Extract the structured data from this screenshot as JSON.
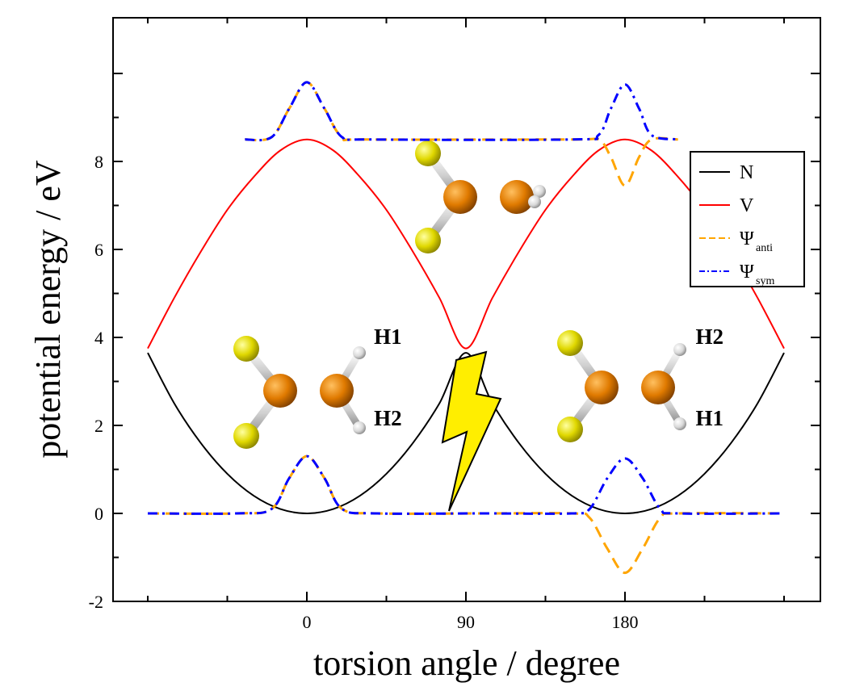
{
  "chart_data": {
    "type": "line",
    "xlabel": "torsion angle / degree",
    "ylabel": "potential energy / eV",
    "xlim": [
      -90,
      270
    ],
    "ylim": [
      -2,
      10
    ],
    "xticks": [
      0,
      90,
      180
    ],
    "yticks": [
      -2,
      0,
      2,
      4,
      6,
      8
    ],
    "legend_position": "right",
    "series": [
      {
        "name": "N",
        "color": "#000000",
        "style": "solid",
        "x": [
          -90,
          -75,
          -60,
          -45,
          -30,
          -15,
          0,
          15,
          30,
          45,
          60,
          75,
          90,
          105,
          120,
          135,
          150,
          165,
          180,
          195,
          210,
          225,
          240,
          255,
          270
        ],
        "y": [
          3.65,
          2.5,
          1.6,
          0.9,
          0.4,
          0.1,
          0.0,
          0.1,
          0.4,
          0.9,
          1.6,
          2.5,
          3.65,
          2.5,
          1.6,
          0.9,
          0.4,
          0.1,
          0.0,
          0.1,
          0.4,
          0.9,
          1.6,
          2.5,
          3.65
        ]
      },
      {
        "name": "V",
        "color": "#ff0000",
        "style": "solid",
        "x": [
          -90,
          -75,
          -60,
          -45,
          -30,
          -15,
          0,
          15,
          30,
          45,
          60,
          75,
          90,
          105,
          120,
          135,
          150,
          165,
          180,
          195,
          210,
          225,
          240,
          255,
          270
        ],
        "y": [
          3.75,
          4.9,
          5.95,
          6.9,
          7.65,
          8.25,
          8.5,
          8.25,
          7.65,
          6.9,
          5.95,
          4.9,
          3.75,
          4.9,
          5.95,
          6.9,
          7.65,
          8.25,
          8.5,
          8.25,
          7.65,
          6.9,
          5.95,
          4.9,
          3.75
        ]
      },
      {
        "name": "Ψanti",
        "color": "#ffa500",
        "style": "dash",
        "segments": [
          {
            "baseline": 0,
            "x": [
              -90,
              -40,
              -20,
              -10,
              0,
              10,
              20,
              40,
              100,
              150,
              160,
              170,
              180,
              190,
              200,
              210,
              270
            ],
            "y": [
              0,
              0,
              0.1,
              0.8,
              1.3,
              0.8,
              0.1,
              0,
              0,
              0,
              -0.1,
              -0.8,
              -1.35,
              -0.8,
              -0.1,
              0,
              0
            ]
          },
          {
            "baseline": 8.5,
            "x": [
              -35,
              -20,
              -10,
              0,
              10,
              20,
              35,
              150,
              165,
              172,
              180,
              188,
              195,
              210
            ],
            "y": [
              8.5,
              8.55,
              9.2,
              9.8,
              9.2,
              8.55,
              8.5,
              8.5,
              8.5,
              8.1,
              7.45,
              8.1,
              8.5,
              8.5
            ]
          }
        ]
      },
      {
        "name": "Ψsym",
        "color": "#0000ff",
        "style": "dashdot",
        "segments": [
          {
            "baseline": 0,
            "x": [
              -90,
              -40,
              -20,
              -10,
              0,
              10,
              20,
              40,
              100,
              150,
              160,
              170,
              180,
              190,
              200,
              210,
              270
            ],
            "y": [
              0,
              0,
              0.1,
              0.8,
              1.3,
              0.8,
              0.1,
              0,
              0,
              0,
              0.1,
              0.8,
              1.25,
              0.8,
              0.1,
              0,
              0
            ]
          },
          {
            "baseline": 8.5,
            "x": [
              -35,
              -20,
              -10,
              0,
              10,
              20,
              35,
              150,
              165,
              172,
              180,
              188,
              195,
              210
            ],
            "y": [
              8.5,
              8.55,
              9.2,
              9.8,
              9.2,
              8.55,
              8.5,
              8.5,
              8.6,
              9.2,
              9.75,
              9.2,
              8.6,
              8.5
            ]
          }
        ]
      }
    ],
    "legend": [
      {
        "symbol": "N",
        "subscript": "",
        "color": "#000000",
        "style": "solid"
      },
      {
        "symbol": "V",
        "subscript": "",
        "color": "#ff0000",
        "style": "solid"
      },
      {
        "symbol": "Ψ",
        "subscript": "anti",
        "color": "#ffa500",
        "style": "dash"
      },
      {
        "symbol": "Ψ",
        "subscript": "sym",
        "color": "#0000ff",
        "style": "dashdot"
      }
    ],
    "annotations": [
      {
        "text": "H1",
        "x": 38,
        "y": 3.85
      },
      {
        "text": "H2",
        "x": 38,
        "y": 2.0
      },
      {
        "text": "H2",
        "x": 220,
        "y": 3.85
      },
      {
        "text": "H1",
        "x": 220,
        "y": 2.0
      }
    ]
  },
  "colors": {
    "fluorine": "#e8e000",
    "carbon": "#e08000",
    "hydrogen": "#e6e6e6",
    "bond": "#cfcfcf",
    "lightning": "#ffee00"
  }
}
